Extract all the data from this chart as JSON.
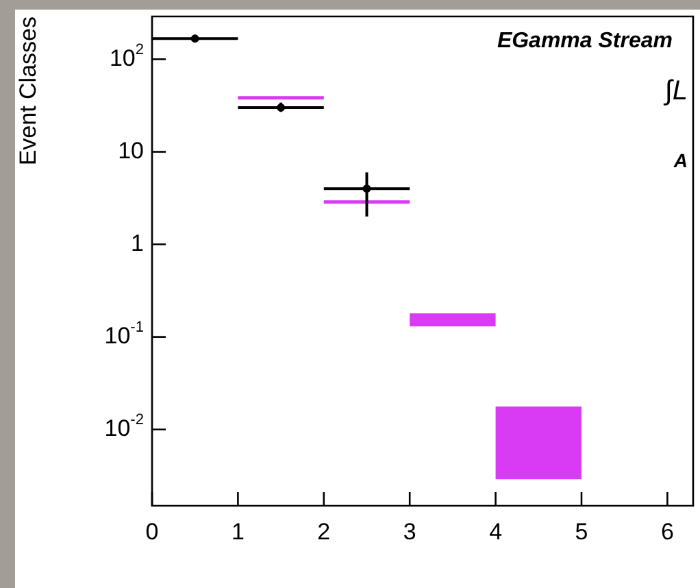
{
  "chart_data": {
    "type": "scatter",
    "ylabel": "Event Classes",
    "log": "y",
    "grid": false,
    "legend": false,
    "marker": "circle",
    "xlim": [
      0,
      6.3
    ],
    "xticks": [
      0,
      1,
      2,
      3,
      4,
      5,
      6
    ],
    "ylim": [
      0.0015,
      290
    ],
    "yticks": [
      {
        "value": 0.01,
        "label": "10$^{-2}$"
      },
      {
        "value": 0.1,
        "label": "10$^{-1}$"
      },
      1,
      10,
      {
        "value": 100,
        "label": "10$^{2}$"
      }
    ],
    "annotations": [
      "EGamma Stream",
      "∫L",
      "A"
    ],
    "series": [
      {
        "type": "bar",
        "color": "#d93bf5",
        "x": [
          1.5,
          2.5,
          3.5,
          4.5
        ],
        "base": [
          38,
          2.8,
          0.13,
          0.0029
        ],
        "values": [
          2,
          0.2,
          0.05,
          0.0148
        ]
      },
      {
        "type": "scatter",
        "color": "#000000",
        "x": [
          0.5,
          1.5,
          2.5
        ],
        "values": [
          167,
          30,
          4.0
        ],
        "xerrors": [
          0.5,
          0.5,
          0.5
        ],
        "errors": [
          null,
          [
            27,
            34
          ],
          [
            2.0,
            6.0
          ]
        ]
      }
    ]
  }
}
